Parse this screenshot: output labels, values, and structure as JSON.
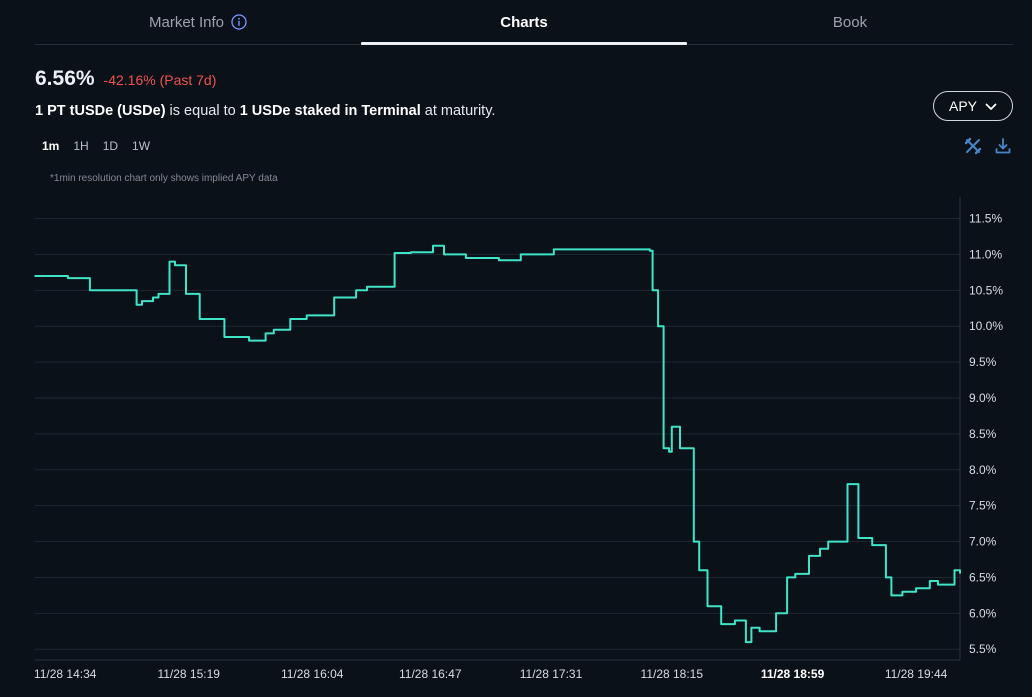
{
  "tabs": [
    {
      "label": "Market Info"
    },
    {
      "label": "Charts"
    },
    {
      "label": "Book"
    }
  ],
  "headline": {
    "apy": "6.56%",
    "change": "-42.16% (Past 7d)"
  },
  "description": {
    "part1": "1 PT tUSDe (USDe)",
    "part2": " is equal to ",
    "part3": "1 USDe staked in Terminal",
    "part4": " at maturity."
  },
  "metric_selector": {
    "label": "APY"
  },
  "resolutions": [
    "1m",
    "1H",
    "1D",
    "1W"
  ],
  "active_resolution": "1m",
  "note": "*1min resolution chart only shows implied APY data",
  "colors": {
    "background": "#0b1119",
    "line": "#3fe3c6",
    "negative": "#ef5350",
    "grid": "#1d2733",
    "axis_text": "#d7dde4"
  },
  "chart_data": {
    "type": "line",
    "x_ticks": [
      "11/28 14:34",
      "11/28 15:19",
      "11/28 16:04",
      "11/28 16:47",
      "11/28 17:31",
      "11/28 18:15",
      "11/28 18:59",
      "11/28 19:44"
    ],
    "x_tick_highlight": "11/28 18:59",
    "y_ticks": [
      "11.5%",
      "11.0%",
      "10.5%",
      "10.0%",
      "9.5%",
      "9.0%",
      "8.5%",
      "8.0%",
      "7.5%",
      "7.0%",
      "6.5%",
      "6.0%",
      "5.5%"
    ],
    "ylim": [
      5.35,
      11.8
    ],
    "series": [
      {
        "x": [
          "11/28 14:23",
          "11/28 14:35",
          "11/28 14:43",
          "11/28 14:51",
          "11/28 15:00",
          "11/28 15:02",
          "11/28 15:06",
          "11/28 15:08",
          "11/28 15:12",
          "11/28 15:14",
          "11/28 15:18",
          "11/28 15:23",
          "11/28 15:32",
          "11/28 15:41",
          "11/28 15:47",
          "11/28 15:50",
          "11/28 15:56",
          "11/28 16:02",
          "11/28 16:12",
          "11/28 16:20",
          "11/28 16:24",
          "11/28 16:34",
          "11/28 16:40",
          "11/28 16:48",
          "11/28 16:52",
          "11/28 17:00",
          "11/28 17:12",
          "11/28 17:20",
          "11/28 17:32",
          "11/28 17:50",
          "11/28 18:07",
          "11/28 18:08",
          "11/28 18:10",
          "11/28 18:12",
          "11/28 18:14",
          "11/28 18:15",
          "11/28 18:18",
          "11/28 18:23",
          "11/28 18:25",
          "11/28 18:28",
          "11/28 18:33",
          "11/28 18:38",
          "11/28 18:42",
          "11/28 18:44",
          "11/28 18:47",
          "11/28 18:53",
          "11/28 18:57",
          "11/28 19:00",
          "11/28 19:05",
          "11/28 19:09",
          "11/28 19:12",
          "11/28 19:16",
          "11/28 19:19",
          "11/28 19:23",
          "11/28 19:28",
          "11/28 19:33",
          "11/28 19:35",
          "11/28 19:39",
          "11/28 19:44",
          "11/28 19:49",
          "11/28 19:52",
          "11/28 19:58",
          "11/28 20:00"
        ],
        "y": [
          10.7,
          10.67,
          10.5,
          10.5,
          10.3,
          10.35,
          10.4,
          10.45,
          10.9,
          10.85,
          10.45,
          10.1,
          9.85,
          9.8,
          9.9,
          9.95,
          10.1,
          10.15,
          10.4,
          10.5,
          10.55,
          11.02,
          11.03,
          11.12,
          11.0,
          10.95,
          10.92,
          11.0,
          11.07,
          11.07,
          11.05,
          10.5,
          10.0,
          8.3,
          8.25,
          8.6,
          8.3,
          7.0,
          6.6,
          6.1,
          5.85,
          5.9,
          5.6,
          5.8,
          5.75,
          6.0,
          6.5,
          6.55,
          6.8,
          6.9,
          7.0,
          7.0,
          7.8,
          7.05,
          6.95,
          6.5,
          6.25,
          6.3,
          6.35,
          6.45,
          6.4,
          6.6,
          6.56
        ]
      }
    ]
  }
}
